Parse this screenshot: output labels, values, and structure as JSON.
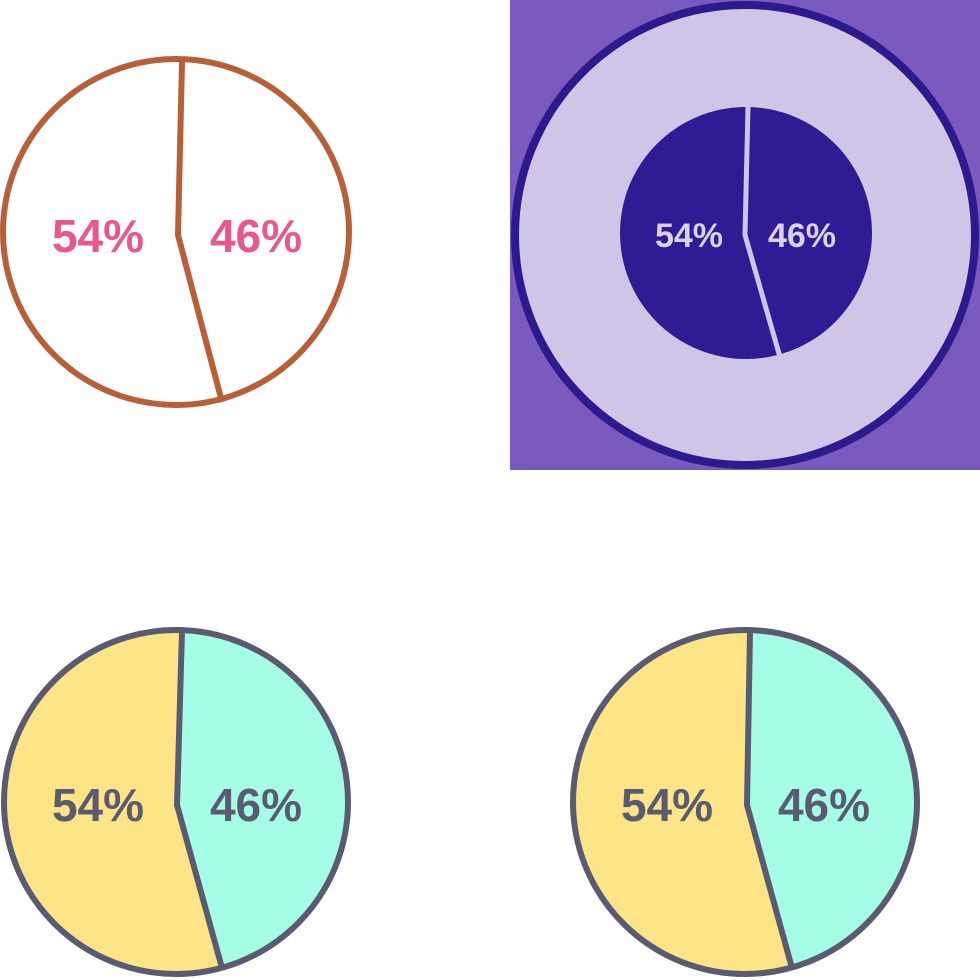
{
  "colors": {
    "background": "#ffffff",
    "outline_brown": "#b85f38",
    "label_pink": "#e8588a",
    "panel_purple": "#7b5ac0",
    "ring_dark": "#2d1a8f",
    "ring_fill": "#cfc5e6",
    "pie_dark": "#2f1b93",
    "label_light": "#d9d2ee",
    "outline_gray": "#5a5a70",
    "slice_yellow": "#fde486",
    "slice_mint": "#a6fde6",
    "label_gray": "#5a5a70"
  },
  "chart_data": [
    {
      "type": "pie",
      "style": "outline",
      "slices": [
        {
          "label": "54%",
          "value": 54
        },
        {
          "label": "46%",
          "value": 46
        }
      ]
    },
    {
      "type": "pie",
      "style": "inverse-on-panel",
      "slices": [
        {
          "label": "54%",
          "value": 54
        },
        {
          "label": "46%",
          "value": 46
        }
      ]
    },
    {
      "type": "pie",
      "style": "filled",
      "slices": [
        {
          "label": "54%",
          "value": 54
        },
        {
          "label": "46%",
          "value": 46
        }
      ]
    },
    {
      "type": "pie",
      "style": "filled",
      "slices": [
        {
          "label": "54%",
          "value": 54
        },
        {
          "label": "46%",
          "value": 46
        }
      ]
    }
  ]
}
